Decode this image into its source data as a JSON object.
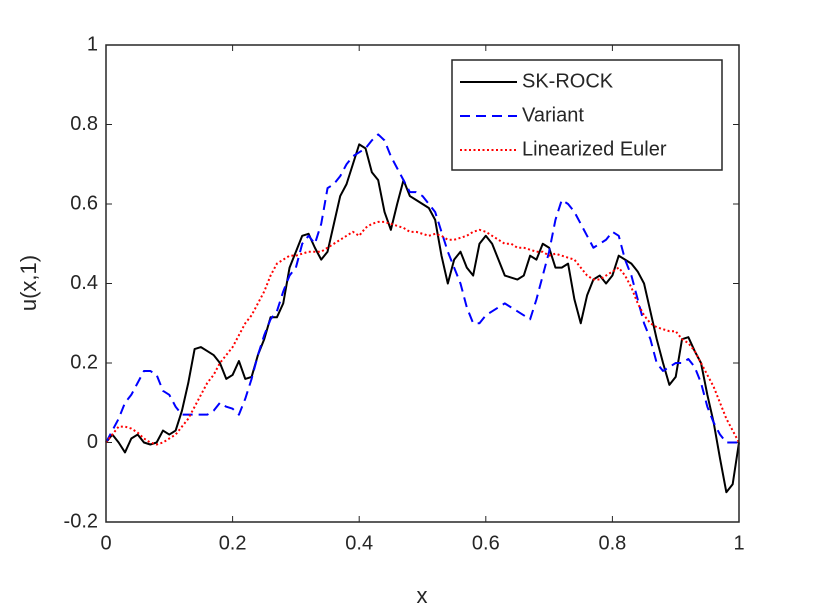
{
  "chart_data": {
    "type": "line",
    "xlabel": "x",
    "ylabel": "u(x,1)",
    "xlim": [
      0,
      1
    ],
    "ylim": [
      -0.2,
      1
    ],
    "xticks": [
      0,
      0.2,
      0.4,
      0.6,
      0.8,
      1
    ],
    "yticks": [
      -0.2,
      0,
      0.2,
      0.4,
      0.6,
      0.8,
      1
    ],
    "grid": false,
    "legend": "northeast",
    "x": [
      0,
      0.01,
      0.02,
      0.03,
      0.04,
      0.05,
      0.06,
      0.07,
      0.08,
      0.09,
      0.1,
      0.11,
      0.12,
      0.13,
      0.14,
      0.15,
      0.16,
      0.17,
      0.18,
      0.19,
      0.2,
      0.21,
      0.22,
      0.23,
      0.24,
      0.25,
      0.26,
      0.27,
      0.28,
      0.29,
      0.3,
      0.31,
      0.32,
      0.33,
      0.34,
      0.35,
      0.36,
      0.37,
      0.38,
      0.39,
      0.4,
      0.41,
      0.42,
      0.43,
      0.44,
      0.45,
      0.46,
      0.47,
      0.48,
      0.49,
      0.5,
      0.51,
      0.52,
      0.53,
      0.54,
      0.55,
      0.56,
      0.57,
      0.58,
      0.59,
      0.6,
      0.61,
      0.62,
      0.63,
      0.64,
      0.65,
      0.66,
      0.67,
      0.68,
      0.69,
      0.7,
      0.71,
      0.72,
      0.73,
      0.74,
      0.75,
      0.76,
      0.77,
      0.78,
      0.79,
      0.8,
      0.81,
      0.82,
      0.83,
      0.84,
      0.85,
      0.86,
      0.87,
      0.88,
      0.89,
      0.9,
      0.91,
      0.92,
      0.93,
      0.94,
      0.95,
      0.96,
      0.97,
      0.98,
      0.99,
      1
    ],
    "series": [
      {
        "name": "SK-ROCK",
        "color": "#000000",
        "style": "solid",
        "values": [
          0,
          0.02,
          0,
          -0.025,
          0.01,
          0.02,
          0,
          -0.005,
          0,
          0.03,
          0.02,
          0.03,
          0.08,
          0.15,
          0.235,
          0.24,
          0.23,
          0.22,
          0.2,
          0.16,
          0.17,
          0.205,
          0.16,
          0.165,
          0.22,
          0.26,
          0.315,
          0.315,
          0.35,
          0.44,
          0.48,
          0.52,
          0.525,
          0.49,
          0.46,
          0.48,
          0.55,
          0.62,
          0.65,
          0.7,
          0.75,
          0.74,
          0.68,
          0.66,
          0.58,
          0.535,
          0.6,
          0.66,
          0.62,
          0.61,
          0.6,
          0.59,
          0.56,
          0.47,
          0.4,
          0.46,
          0.48,
          0.44,
          0.42,
          0.5,
          0.52,
          0.5,
          0.46,
          0.42,
          0.415,
          0.41,
          0.42,
          0.47,
          0.46,
          0.5,
          0.49,
          0.44,
          0.44,
          0.45,
          0.36,
          0.3,
          0.37,
          0.41,
          0.42,
          0.4,
          0.42,
          0.47,
          0.46,
          0.45,
          0.43,
          0.4,
          0.33,
          0.26,
          0.2,
          0.145,
          0.165,
          0.26,
          0.265,
          0.23,
          0.2,
          0.12,
          0.05,
          -0.04,
          -0.125,
          -0.105,
          0
        ]
      },
      {
        "name": "Variant",
        "color": "#0000ff",
        "style": "dashed",
        "values": [
          0,
          0.03,
          0.06,
          0.1,
          0.12,
          0.15,
          0.18,
          0.18,
          0.17,
          0.13,
          0.12,
          0.09,
          0.07,
          0.07,
          0.07,
          0.07,
          0.07,
          0.08,
          0.1,
          0.09,
          0.085,
          0.07,
          0.11,
          0.16,
          0.22,
          0.27,
          0.31,
          0.33,
          0.38,
          0.42,
          0.44,
          0.5,
          0.52,
          0.5,
          0.55,
          0.64,
          0.65,
          0.67,
          0.7,
          0.72,
          0.73,
          0.74,
          0.76,
          0.775,
          0.76,
          0.72,
          0.69,
          0.66,
          0.63,
          0.63,
          0.62,
          0.6,
          0.58,
          0.53,
          0.48,
          0.44,
          0.4,
          0.34,
          0.3,
          0.3,
          0.32,
          0.33,
          0.34,
          0.35,
          0.34,
          0.33,
          0.32,
          0.31,
          0.36,
          0.42,
          0.48,
          0.56,
          0.61,
          0.6,
          0.58,
          0.55,
          0.52,
          0.49,
          0.5,
          0.51,
          0.53,
          0.52,
          0.46,
          0.42,
          0.36,
          0.3,
          0.26,
          0.2,
          0.18,
          0.19,
          0.2,
          0.2,
          0.21,
          0.19,
          0.15,
          0.09,
          0.05,
          0.02,
          0,
          0,
          0
        ]
      },
      {
        "name": "Linearized Euler",
        "color": "#ff0000",
        "style": "dotted",
        "values": [
          0,
          0.02,
          0.04,
          0.04,
          0.035,
          0.025,
          0.01,
          0,
          -0.005,
          0,
          0.01,
          0.02,
          0.04,
          0.06,
          0.09,
          0.12,
          0.15,
          0.17,
          0.2,
          0.22,
          0.24,
          0.27,
          0.3,
          0.32,
          0.35,
          0.38,
          0.42,
          0.45,
          0.46,
          0.47,
          0.47,
          0.475,
          0.48,
          0.48,
          0.48,
          0.49,
          0.5,
          0.51,
          0.52,
          0.53,
          0.52,
          0.54,
          0.55,
          0.555,
          0.555,
          0.55,
          0.545,
          0.54,
          0.53,
          0.53,
          0.525,
          0.52,
          0.525,
          0.52,
          0.51,
          0.51,
          0.515,
          0.52,
          0.53,
          0.535,
          0.53,
          0.52,
          0.51,
          0.5,
          0.5,
          0.49,
          0.49,
          0.485,
          0.48,
          0.48,
          0.47,
          0.475,
          0.47,
          0.465,
          0.46,
          0.44,
          0.42,
          0.41,
          0.41,
          0.42,
          0.43,
          0.44,
          0.42,
          0.39,
          0.35,
          0.32,
          0.3,
          0.29,
          0.285,
          0.28,
          0.28,
          0.26,
          0.25,
          0.23,
          0.2,
          0.17,
          0.14,
          0.1,
          0.06,
          0.03,
          0
        ]
      }
    ]
  }
}
